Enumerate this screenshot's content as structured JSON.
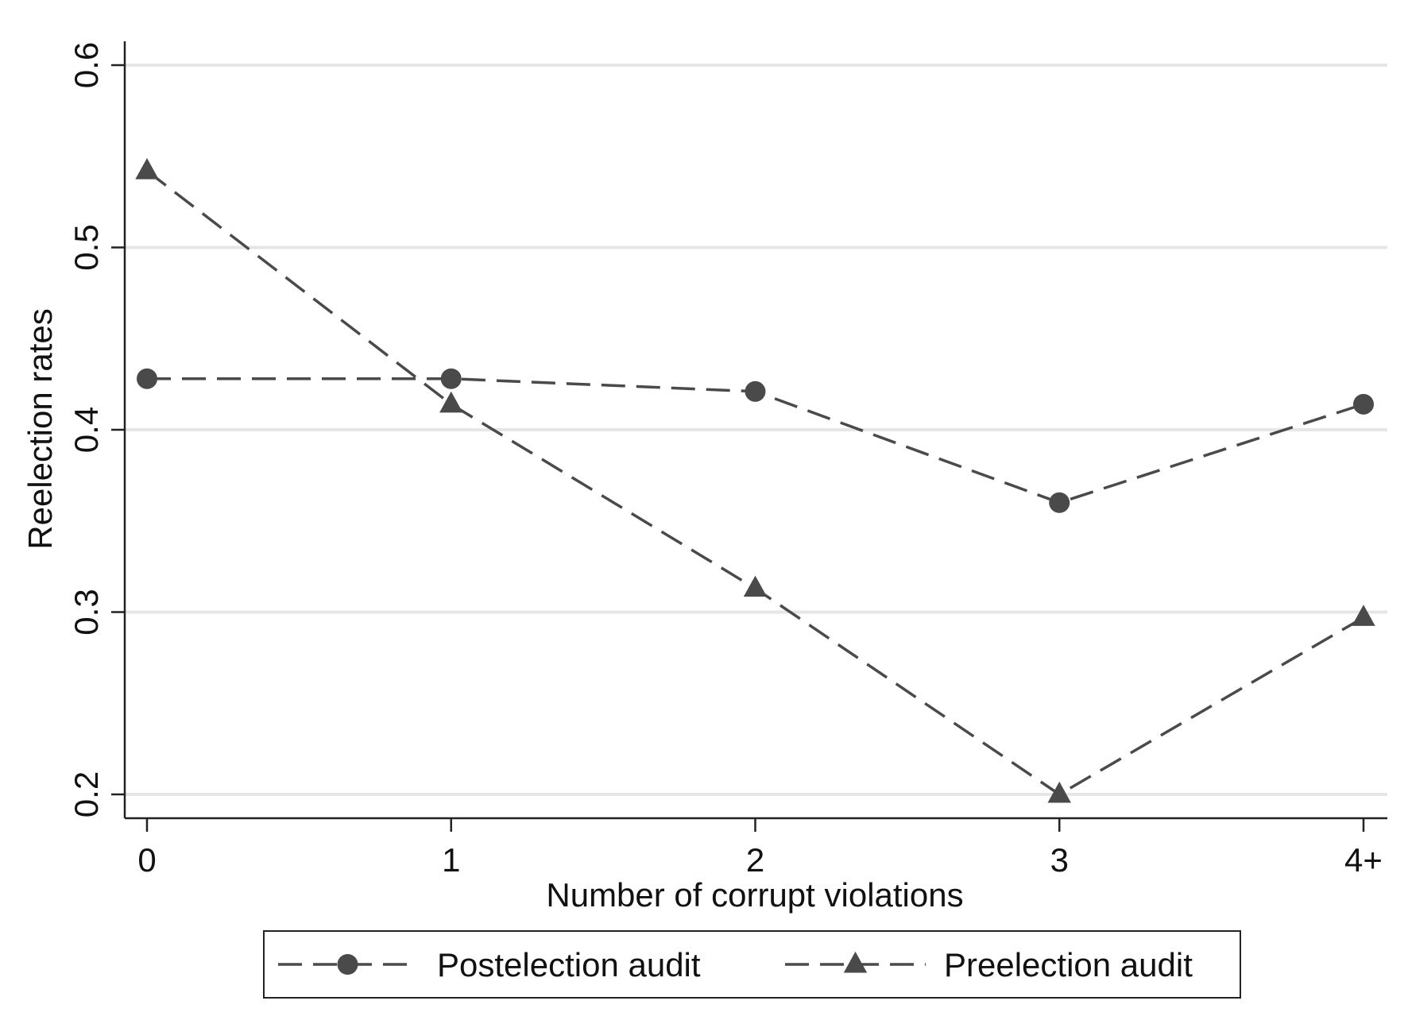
{
  "chart_data": {
    "type": "line",
    "title": "",
    "xlabel": "Number of corrupt violations",
    "ylabel": "Reelection rates",
    "categories": [
      "0",
      "1",
      "2",
      "3",
      "4+"
    ],
    "ylim": [
      0.2,
      0.6
    ],
    "yticks": [
      0.2,
      0.3,
      0.4,
      0.5,
      0.6
    ],
    "ytick_labels": [
      "0.2",
      "0.3",
      "0.4",
      "0.5",
      "0.6"
    ],
    "grid": "horizontal",
    "legend_position": "bottom",
    "line_style": "dashed",
    "colors": {
      "series": "#4a4a4a",
      "grid": "#e6e6e6",
      "axis": "#222222"
    },
    "series": [
      {
        "name": "Postelection audit",
        "marker": "circle",
        "values": [
          0.428,
          0.428,
          0.421,
          0.36,
          0.414
        ]
      },
      {
        "name": "Preelection audit",
        "marker": "triangle",
        "values": [
          0.542,
          0.414,
          0.313,
          0.2,
          0.297
        ]
      }
    ]
  }
}
